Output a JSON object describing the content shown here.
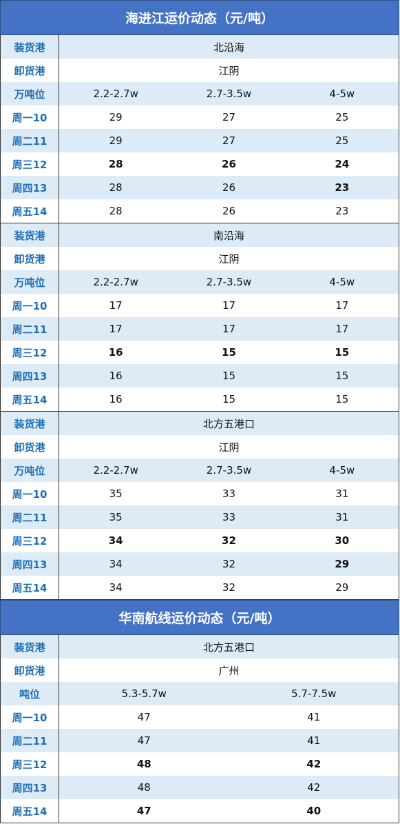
{
  "table1": {
    "title": "海进江运价动态（元/吨）",
    "blocks": [
      {
        "load_label": "装货港",
        "load_port": "北沿海",
        "unload_label": "卸货港",
        "unload_port": "江阴",
        "ton_label": "万吨位",
        "tonnage": [
          "2.2-2.7w",
          "2.7-3.5w",
          "4-5w"
        ],
        "days": [
          {
            "day": "周一10",
            "values": [
              "29",
              "27",
              "25"
            ],
            "bold": [
              false,
              false,
              false
            ]
          },
          {
            "day": "周二11",
            "values": [
              "29",
              "27",
              "25"
            ],
            "bold": [
              false,
              false,
              false
            ]
          },
          {
            "day": "周三12",
            "values": [
              "28",
              "26",
              "24"
            ],
            "bold": [
              true,
              true,
              true
            ]
          },
          {
            "day": "周四13",
            "values": [
              "28",
              "26",
              "23"
            ],
            "bold": [
              false,
              false,
              true
            ]
          },
          {
            "day": "周五14",
            "values": [
              "28",
              "26",
              "23"
            ],
            "bold": [
              false,
              false,
              false
            ]
          }
        ]
      },
      {
        "load_label": "装货港",
        "load_port": "南沿海",
        "unload_label": "卸货港",
        "unload_port": "江阴",
        "ton_label": "万吨位",
        "tonnage": [
          "2.2-2.7w",
          "2.7-3.5w",
          "4-5w"
        ],
        "days": [
          {
            "day": "周一10",
            "values": [
              "17",
              "17",
              "17"
            ],
            "bold": [
              false,
              false,
              false
            ]
          },
          {
            "day": "周二11",
            "values": [
              "17",
              "17",
              "17"
            ],
            "bold": [
              false,
              false,
              false
            ]
          },
          {
            "day": "周三12",
            "values": [
              "16",
              "15",
              "15"
            ],
            "bold": [
              true,
              true,
              true
            ]
          },
          {
            "day": "周四13",
            "values": [
              "16",
              "15",
              "15"
            ],
            "bold": [
              false,
              false,
              false
            ]
          },
          {
            "day": "周五14",
            "values": [
              "16",
              "15",
              "15"
            ],
            "bold": [
              false,
              false,
              false
            ]
          }
        ]
      },
      {
        "load_label": "装货港",
        "load_port": "北方五港口",
        "unload_label": "卸货港",
        "unload_port": "江阴",
        "ton_label": "万吨位",
        "tonnage": [
          "2.2-2.7w",
          "2.7-3.5w",
          "4-5w"
        ],
        "days": [
          {
            "day": "周一10",
            "values": [
              "35",
              "33",
              "31"
            ],
            "bold": [
              false,
              false,
              false
            ]
          },
          {
            "day": "周二11",
            "values": [
              "35",
              "33",
              "31"
            ],
            "bold": [
              false,
              false,
              false
            ]
          },
          {
            "day": "周三12",
            "values": [
              "34",
              "32",
              "30"
            ],
            "bold": [
              true,
              true,
              true
            ]
          },
          {
            "day": "周四13",
            "values": [
              "34",
              "32",
              "29"
            ],
            "bold": [
              false,
              false,
              true
            ]
          },
          {
            "day": "周五14",
            "values": [
              "34",
              "32",
              "29"
            ],
            "bold": [
              false,
              false,
              false
            ]
          }
        ]
      }
    ]
  },
  "table2": {
    "title": "华南航线运价动态（元/吨）",
    "blocks": [
      {
        "load_label": "装货港",
        "load_port": "北方五港口",
        "unload_label": "卸货港",
        "unload_port": "广州",
        "ton_label": "吨位",
        "tonnage": [
          "5.3-5.7w",
          "5.7-7.5w"
        ],
        "days": [
          {
            "day": "周一10",
            "values": [
              "47",
              "41"
            ],
            "bold": [
              false,
              false
            ]
          },
          {
            "day": "周二11",
            "values": [
              "47",
              "41"
            ],
            "bold": [
              false,
              false
            ]
          },
          {
            "day": "周三12",
            "values": [
              "48",
              "42"
            ],
            "bold": [
              true,
              true
            ]
          },
          {
            "day": "周四13",
            "values": [
              "48",
              "42"
            ],
            "bold": [
              false,
              false
            ]
          },
          {
            "day": "周五14",
            "values": [
              "47",
              "40"
            ],
            "bold": [
              true,
              true
            ]
          }
        ]
      }
    ]
  }
}
